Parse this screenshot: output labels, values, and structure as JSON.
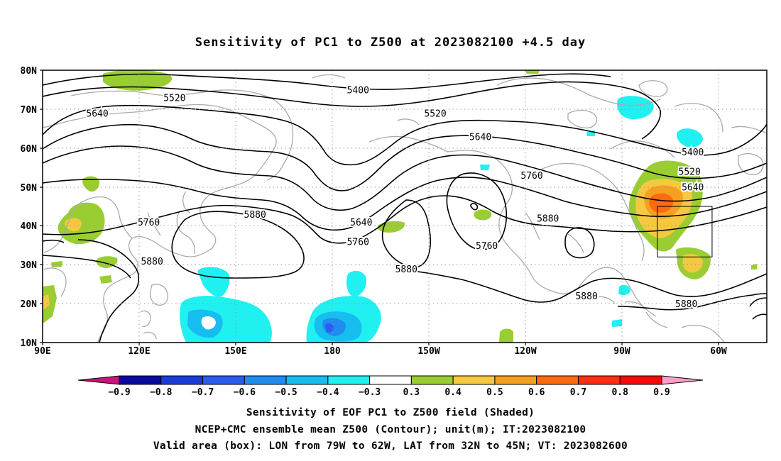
{
  "title": "Sensitivity of PC1 to Z500 at 2023082100 +4.5 day",
  "map": {
    "lat_labels": [
      "80N",
      "70N",
      "60N",
      "50N",
      "40N",
      "30N",
      "20N",
      "10N"
    ],
    "lon_labels": [
      "90E",
      "120E",
      "150E",
      "180",
      "150W",
      "120W",
      "90W",
      "60W"
    ]
  },
  "contour_labels": [
    "5400",
    "5520",
    "5640",
    "5760",
    "5880"
  ],
  "contour_label_instances": [
    {
      "text": "5520",
      "lon": 131,
      "lat": 73
    },
    {
      "text": "5640",
      "lon": 107,
      "lat": 69
    },
    {
      "text": "5400",
      "lon": -172,
      "lat": 75
    },
    {
      "text": "5520",
      "lon": -148,
      "lat": 69
    },
    {
      "text": "5640",
      "lon": -134,
      "lat": 63
    },
    {
      "text": "5760",
      "lon": -118,
      "lat": 53
    },
    {
      "text": "5400",
      "lon": -68,
      "lat": 59
    },
    {
      "text": "5520",
      "lon": -69,
      "lat": 54
    },
    {
      "text": "5640",
      "lon": -68,
      "lat": 50
    },
    {
      "text": "5760",
      "lon": 123,
      "lat": 41
    },
    {
      "text": "5880",
      "lon": 156,
      "lat": 43
    },
    {
      "text": "5640",
      "lon": -171,
      "lat": 41
    },
    {
      "text": "5760",
      "lon": -172,
      "lat": 36
    },
    {
      "text": "5880",
      "lon": -113,
      "lat": 42
    },
    {
      "text": "5760",
      "lon": -132,
      "lat": 35
    },
    {
      "text": "5880",
      "lon": 124,
      "lat": 31
    },
    {
      "text": "5880",
      "lon": -157,
      "lat": 29
    },
    {
      "text": "5880",
      "lon": -101,
      "lat": 22
    },
    {
      "text": "5880",
      "lon": -70,
      "lat": 20
    }
  ],
  "colorbar": {
    "labels": [
      "-0.9",
      "-0.8",
      "-0.7",
      "-0.6",
      "-0.5",
      "-0.4",
      "-0.3",
      "0.3",
      "0.4",
      "0.5",
      "0.6",
      "0.7",
      "0.8",
      "0.9"
    ],
    "colors": [
      "#0a0a9e",
      "#1c3cd8",
      "#2b5cf0",
      "#1f8cf0",
      "#18bdf0",
      "#20f0f0",
      "#ffffff",
      "#9acd32",
      "#f5c842",
      "#f5a020",
      "#ff6a10",
      "#ff2e10",
      "#f50a0a"
    ],
    "low_arrow_color": "#c8147d",
    "high_arrow_color": "#ff9ec8"
  },
  "box": {
    "lon_west": -79,
    "lon_east": -62,
    "lat_south": 32,
    "lat_north": 45
  },
  "caption": {
    "line1": "Sensitivity of EOF PC1 to Z500 field (Shaded)",
    "line2": "NCEP+CMC ensemble mean Z500 (Contour); unit(m); IT:2023082100",
    "line3": "Valid area (box): LON from 79W to 62W, LAT from 32N to 45N; VT: 2023082600"
  }
}
